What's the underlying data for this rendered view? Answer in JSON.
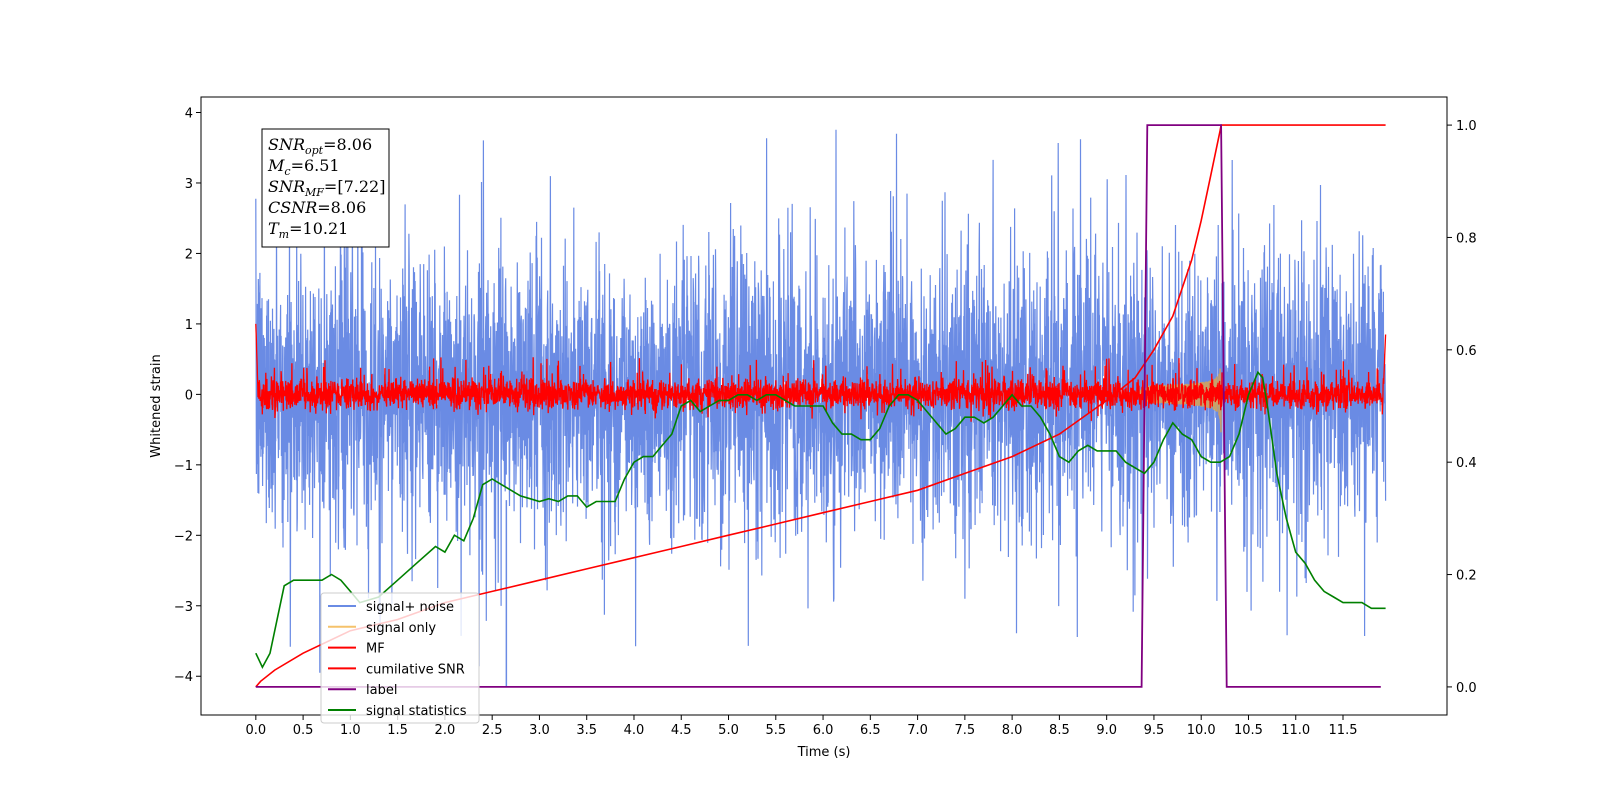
{
  "chart_data": {
    "type": "line",
    "title": "",
    "xlabel": "Time (s)",
    "ylabel": "Whitened strain",
    "y2label": "",
    "xlim": [
      -0.58,
      12.6
    ],
    "ylim": [
      -4.55,
      4.22
    ],
    "y2lim": [
      -0.05,
      1.05
    ],
    "xticks": [
      "0.0",
      "0.5",
      "1.0",
      "1.5",
      "2.0",
      "2.5",
      "3.0",
      "3.5",
      "4.0",
      "4.5",
      "5.0",
      "5.5",
      "6.0",
      "6.5",
      "7.0",
      "7.5",
      "8.0",
      "8.5",
      "9.0",
      "9.5",
      "10.0",
      "10.5",
      "11.0",
      "11.5"
    ],
    "yticks": [
      "4",
      "3",
      "2",
      "1",
      "0",
      "−1",
      "−2",
      "−3",
      "−4"
    ],
    "y2ticks": [
      "1.0",
      "0.8",
      "0.6",
      "0.4",
      "0.2",
      "0.0"
    ],
    "grid": false,
    "legend_position": "lower-left",
    "colors": {
      "signal_noise": "#6a8be4",
      "signal_only": "#f5c26b",
      "chirp_fill": "#c8a06a",
      "mf": "#ff0000",
      "csnr": "#ff0000",
      "label": "#800080",
      "stats": "#008000"
    },
    "annotation": {
      "lines": [
        {
          "base": "SNR",
          "sub": "opt",
          "value": "=8.06"
        },
        {
          "base": "M",
          "sub": "c",
          "value": "=6.51"
        },
        {
          "base": "SNR",
          "sub": "MF",
          "value": "=[7.22]"
        },
        {
          "base": "CSNR",
          "sub": "",
          "value": "=8.06"
        },
        {
          "base": "T",
          "sub": "m",
          "value": "=10.21"
        }
      ]
    },
    "series": [
      {
        "name": "signal+ noise",
        "axis": "left",
        "note": "dense noise roughly between -2.7 and 3.0 with spikes"
      },
      {
        "name": "signal only",
        "axis": "left",
        "note": "chirp growing from 9.3 s to 10.21 s"
      },
      {
        "name": "MF",
        "axis": "left",
        "note": "matched filter output near 0"
      },
      {
        "name": "cumilative SNR",
        "axis": "right",
        "x": [
          0.0,
          0.05,
          0.2,
          0.5,
          1.0,
          1.5,
          2.0,
          2.5,
          3.0,
          3.5,
          4.0,
          4.5,
          5.0,
          5.5,
          6.0,
          6.5,
          7.0,
          7.5,
          8.0,
          8.5,
          9.0,
          9.3,
          9.5,
          9.7,
          9.9,
          10.0,
          10.1,
          10.15,
          10.2,
          10.21,
          11.0,
          11.95
        ],
        "y": [
          0.0,
          0.01,
          0.03,
          0.06,
          0.1,
          0.12,
          0.15,
          0.17,
          0.19,
          0.21,
          0.23,
          0.25,
          0.27,
          0.29,
          0.31,
          0.33,
          0.35,
          0.38,
          0.41,
          0.45,
          0.51,
          0.55,
          0.6,
          0.66,
          0.76,
          0.83,
          0.91,
          0.95,
          0.99,
          1.0,
          1.0,
          1.0
        ]
      },
      {
        "name": "label",
        "axis": "right",
        "x": [
          0.0,
          9.37,
          9.43,
          10.21,
          10.27,
          11.9
        ],
        "y": [
          0.0,
          0.0,
          1.0,
          1.0,
          0.0,
          0.0
        ]
      },
      {
        "name": "signal statistics",
        "axis": "right",
        "x": [
          0.0,
          0.07,
          0.15,
          0.3,
          0.4,
          0.5,
          0.6,
          0.7,
          0.8,
          0.9,
          1.0,
          1.1,
          1.3,
          1.5,
          1.7,
          1.9,
          2.0,
          2.1,
          2.2,
          2.3,
          2.4,
          2.5,
          2.6,
          2.7,
          2.8,
          2.9,
          3.0,
          3.1,
          3.2,
          3.3,
          3.4,
          3.5,
          3.6,
          3.7,
          3.8,
          3.9,
          4.0,
          4.1,
          4.2,
          4.3,
          4.4,
          4.5,
          4.6,
          4.7,
          4.8,
          4.9,
          5.0,
          5.1,
          5.2,
          5.3,
          5.4,
          5.5,
          5.6,
          5.7,
          5.8,
          5.9,
          6.0,
          6.1,
          6.2,
          6.3,
          6.4,
          6.5,
          6.6,
          6.7,
          6.8,
          6.9,
          7.0,
          7.1,
          7.2,
          7.3,
          7.4,
          7.5,
          7.6,
          7.7,
          7.8,
          7.9,
          8.0,
          8.1,
          8.2,
          8.3,
          8.4,
          8.5,
          8.6,
          8.7,
          8.8,
          8.9,
          9.0,
          9.1,
          9.2,
          9.3,
          9.4,
          9.5,
          9.6,
          9.7,
          9.8,
          9.9,
          10.0,
          10.1,
          10.2,
          10.3,
          10.4,
          10.5,
          10.6,
          10.65,
          10.7,
          10.8,
          10.9,
          11.0,
          11.1,
          11.2,
          11.3,
          11.4,
          11.5,
          11.6,
          11.7,
          11.8,
          11.9,
          11.95
        ],
        "y": [
          0.06,
          0.035,
          0.06,
          0.18,
          0.19,
          0.19,
          0.19,
          0.19,
          0.2,
          0.19,
          0.17,
          0.15,
          0.16,
          0.19,
          0.22,
          0.25,
          0.24,
          0.27,
          0.26,
          0.3,
          0.36,
          0.37,
          0.36,
          0.35,
          0.34,
          0.335,
          0.33,
          0.335,
          0.33,
          0.34,
          0.34,
          0.32,
          0.33,
          0.33,
          0.33,
          0.37,
          0.4,
          0.41,
          0.41,
          0.43,
          0.45,
          0.5,
          0.51,
          0.49,
          0.5,
          0.51,
          0.51,
          0.52,
          0.52,
          0.51,
          0.52,
          0.52,
          0.51,
          0.5,
          0.5,
          0.5,
          0.5,
          0.47,
          0.45,
          0.45,
          0.44,
          0.44,
          0.46,
          0.5,
          0.52,
          0.52,
          0.51,
          0.49,
          0.47,
          0.45,
          0.46,
          0.48,
          0.48,
          0.47,
          0.48,
          0.5,
          0.52,
          0.5,
          0.5,
          0.48,
          0.45,
          0.41,
          0.4,
          0.42,
          0.43,
          0.42,
          0.42,
          0.42,
          0.4,
          0.39,
          0.38,
          0.4,
          0.44,
          0.47,
          0.45,
          0.44,
          0.41,
          0.4,
          0.4,
          0.41,
          0.45,
          0.52,
          0.56,
          0.55,
          0.5,
          0.38,
          0.3,
          0.24,
          0.22,
          0.19,
          0.17,
          0.16,
          0.15,
          0.15,
          0.15,
          0.14,
          0.14,
          0.14
        ]
      }
    ]
  }
}
